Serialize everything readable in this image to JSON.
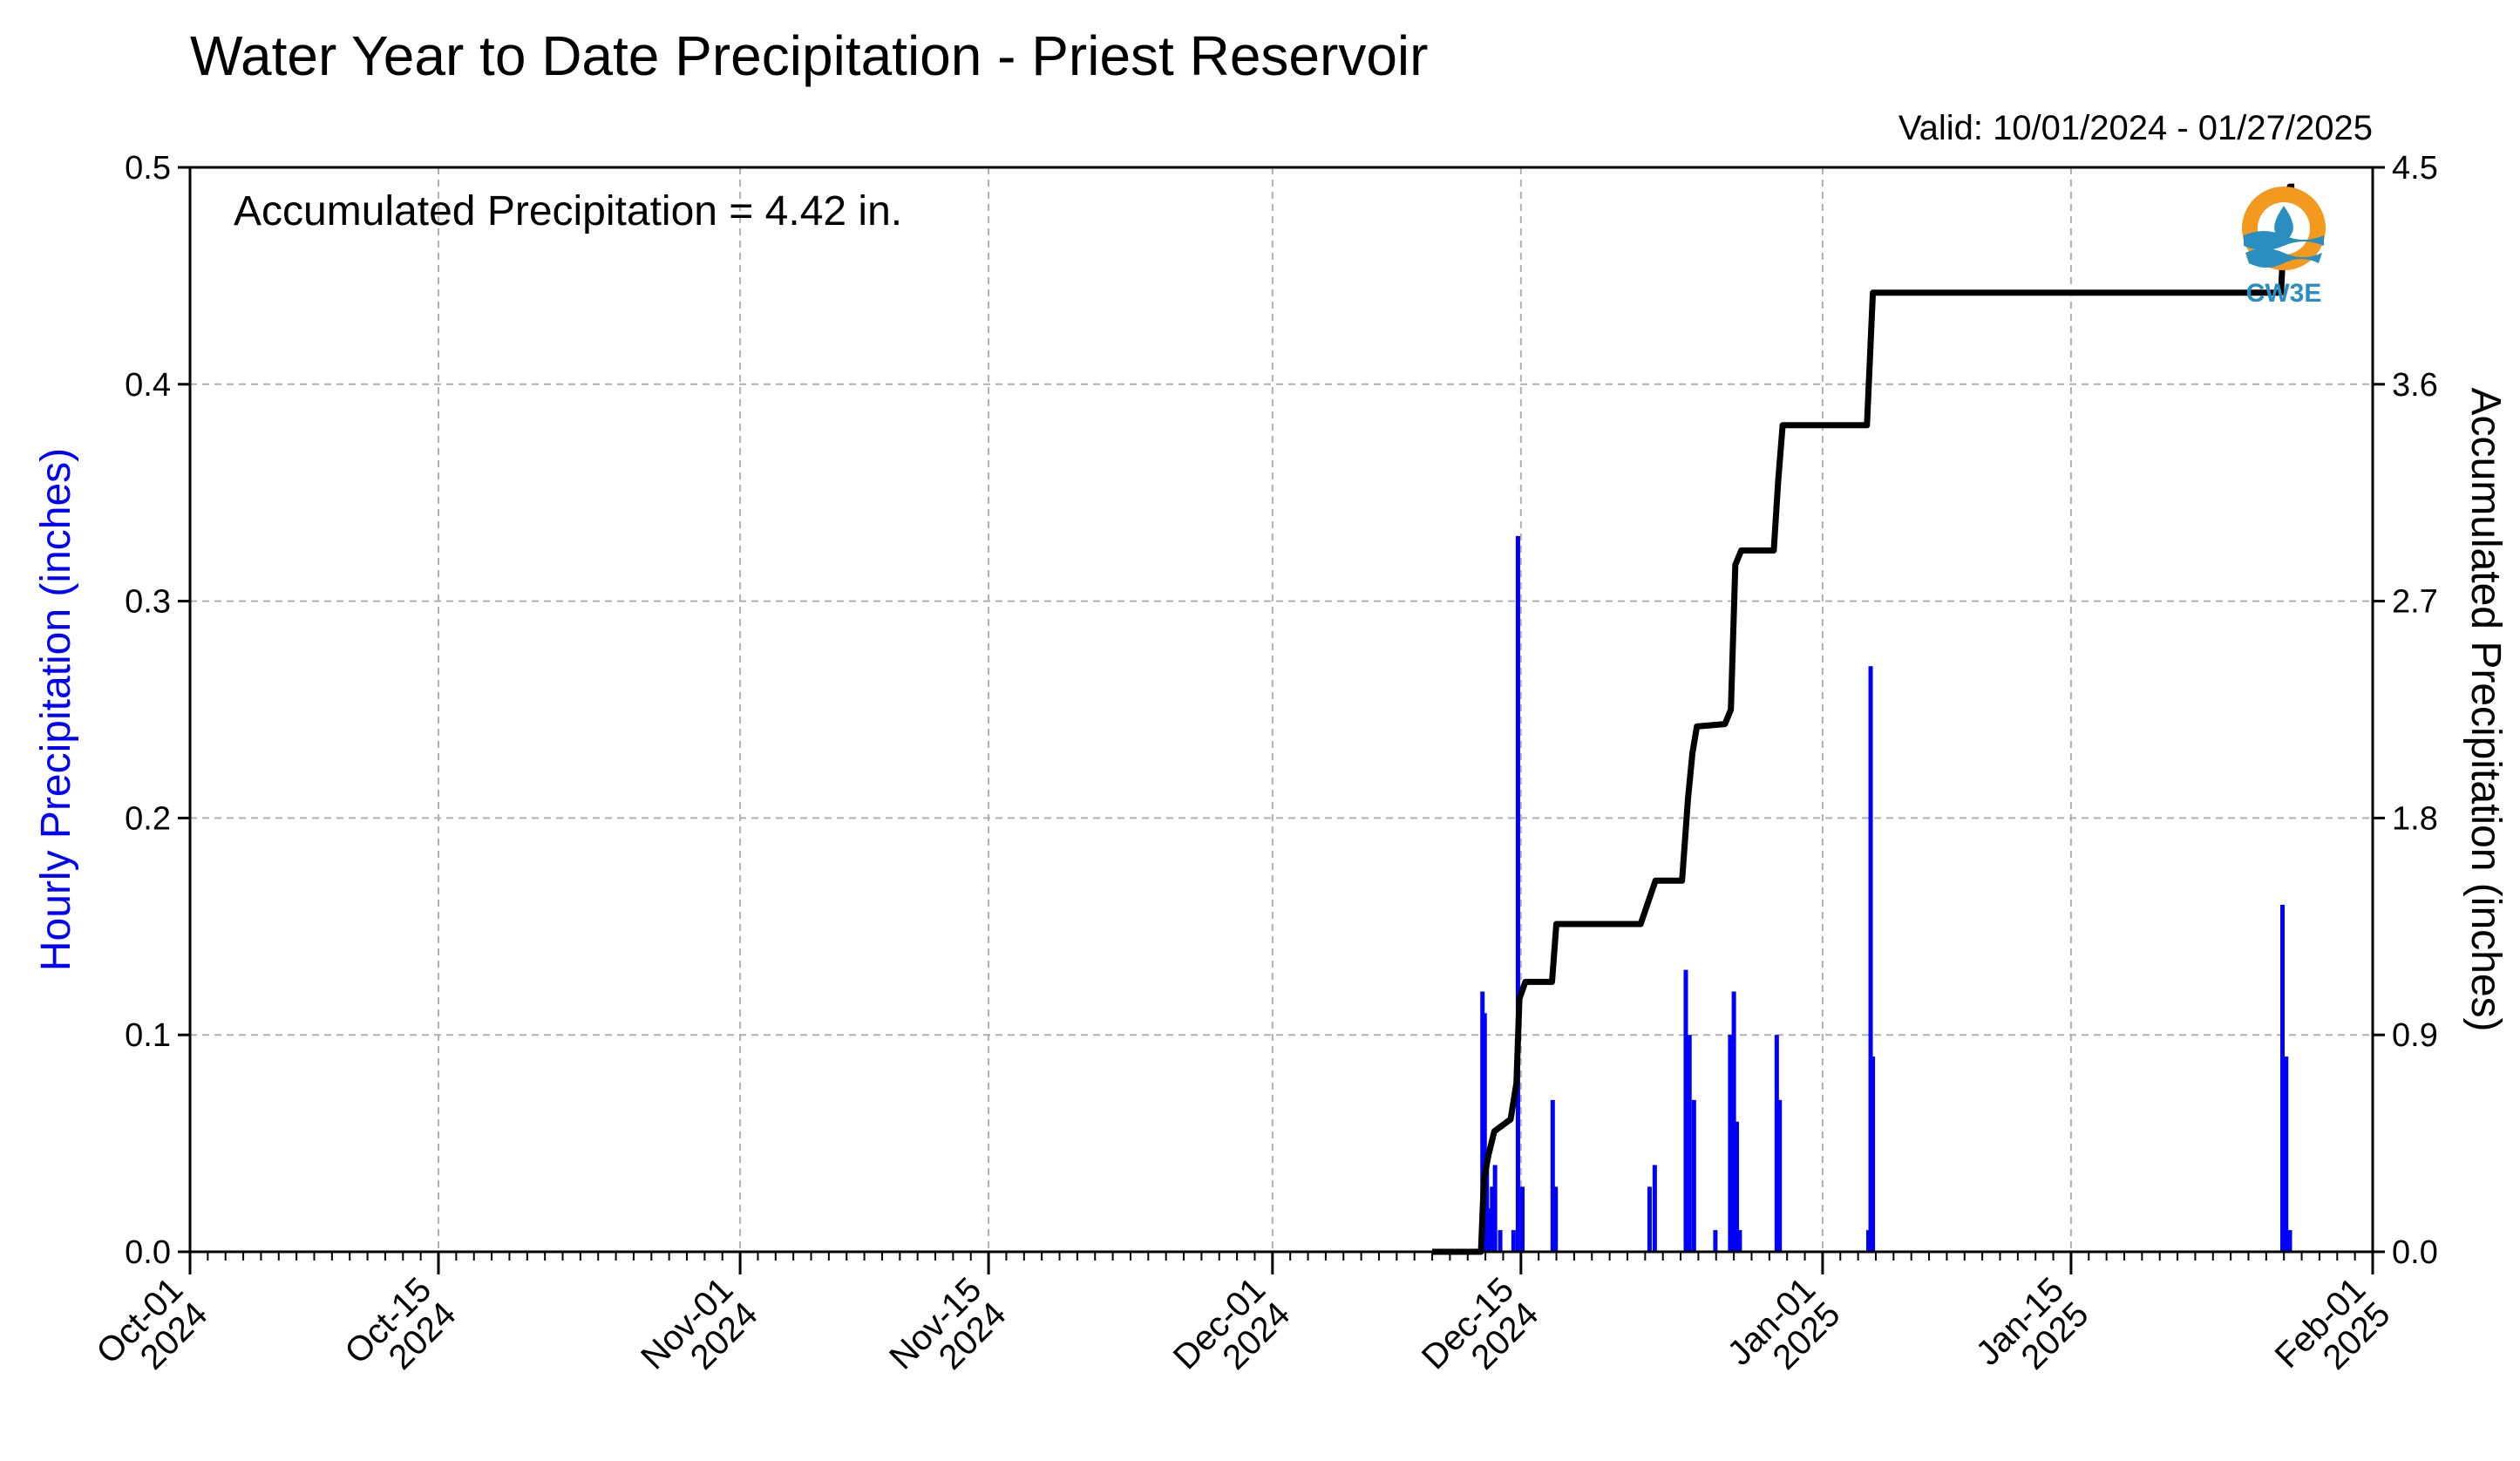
{
  "chart_data": {
    "type": "bar",
    "title": "Water Year to Date Precipitation - Priest Reservoir",
    "subtitle": "Valid: 10/01/2024 - 01/27/2025",
    "annotation": "Accumulated Precipitation = 4.42 in.",
    "logo_text": "CW3E",
    "xlabel": "",
    "ylabel": "Hourly Precipitation (inches)",
    "y2label": "Accumulated Precipitation (inches)",
    "x_start": "2024-10-01",
    "x_end": "2025-02-01",
    "ylim": [
      0,
      0.5
    ],
    "y2lim": [
      0,
      4.5
    ],
    "yticks": [
      "0.0",
      "0.1",
      "0.2",
      "0.3",
      "0.4",
      "0.5"
    ],
    "y2ticks": [
      "0.0",
      "0.9",
      "1.8",
      "2.7",
      "3.6",
      "4.5"
    ],
    "xticks": [
      {
        "date": "2024-10-01",
        "line1": "Oct-01",
        "line2": "2024"
      },
      {
        "date": "2024-10-15",
        "line1": "Oct-15",
        "line2": "2024"
      },
      {
        "date": "2024-11-01",
        "line1": "Nov-01",
        "line2": "2024"
      },
      {
        "date": "2024-11-15",
        "line1": "Nov-15",
        "line2": "2024"
      },
      {
        "date": "2024-12-01",
        "line1": "Dec-01",
        "line2": "2024"
      },
      {
        "date": "2024-12-15",
        "line1": "Dec-15",
        "line2": "2024"
      },
      {
        "date": "2025-01-01",
        "line1": "Jan-01",
        "line2": "2025"
      },
      {
        "date": "2025-01-15",
        "line1": "Jan-15",
        "line2": "2025"
      },
      {
        "date": "2025-02-01",
        "line1": "Feb-01",
        "line2": "2025"
      }
    ],
    "series": [
      {
        "name": "Hourly Precipitation",
        "color": "#0000ff",
        "type": "bar",
        "points": [
          {
            "x": "2024-12-12 20:00",
            "y": 0.12
          },
          {
            "x": "2024-12-12 23:00",
            "y": 0.11
          },
          {
            "x": "2024-12-13 02:00",
            "y": 0.04
          },
          {
            "x": "2024-12-13 05:00",
            "y": 0.02
          },
          {
            "x": "2024-12-13 09:00",
            "y": 0.03
          },
          {
            "x": "2024-12-13 13:00",
            "y": 0.04
          },
          {
            "x": "2024-12-13 20:00",
            "y": 0.01
          },
          {
            "x": "2024-12-14 14:00",
            "y": 0.01
          },
          {
            "x": "2024-12-14 20:00",
            "y": 0.33
          },
          {
            "x": "2024-12-15 02:00",
            "y": 0.03
          },
          {
            "x": "2024-12-16 19:00",
            "y": 0.07
          },
          {
            "x": "2024-12-16 23:00",
            "y": 0.03
          },
          {
            "x": "2024-12-22 06:00",
            "y": 0.03
          },
          {
            "x": "2024-12-22 13:00",
            "y": 0.04
          },
          {
            "x": "2024-12-24 07:00",
            "y": 0.13
          },
          {
            "x": "2024-12-24 12:00",
            "y": 0.1
          },
          {
            "x": "2024-12-24 18:00",
            "y": 0.07
          },
          {
            "x": "2024-12-25 23:00",
            "y": 0.01
          },
          {
            "x": "2024-12-26 19:00",
            "y": 0.1
          },
          {
            "x": "2024-12-27 00:00",
            "y": 0.12
          },
          {
            "x": "2024-12-27 04:00",
            "y": 0.06
          },
          {
            "x": "2024-12-27 08:00",
            "y": 0.01
          },
          {
            "x": "2024-12-29 10:00",
            "y": 0.1
          },
          {
            "x": "2024-12-29 14:00",
            "y": 0.07
          },
          {
            "x": "2025-01-03 14:00",
            "y": 0.01
          },
          {
            "x": "2025-01-03 17:00",
            "y": 0.27
          },
          {
            "x": "2025-01-03 20:00",
            "y": 0.09
          },
          {
            "x": "2025-01-26 22:00",
            "y": 0.16
          },
          {
            "x": "2025-01-27 03:00",
            "y": 0.09
          },
          {
            "x": "2025-01-27 08:00",
            "y": 0.01
          }
        ]
      },
      {
        "name": "Accumulated Precipitation",
        "color": "#000000",
        "type": "step",
        "points": [
          {
            "x": "2024-12-10 00:00",
            "y": 0.0
          },
          {
            "x": "2024-12-12 18:00",
            "y": 0.0
          },
          {
            "x": "2024-12-12 22:00",
            "y": 0.3
          },
          {
            "x": "2024-12-13 04:00",
            "y": 0.4
          },
          {
            "x": "2024-12-13 12:00",
            "y": 0.5
          },
          {
            "x": "2024-12-14 10:00",
            "y": 0.55
          },
          {
            "x": "2024-12-14 18:00",
            "y": 0.7
          },
          {
            "x": "2024-12-14 22:00",
            "y": 1.05
          },
          {
            "x": "2024-12-15 06:00",
            "y": 1.12
          },
          {
            "x": "2024-12-16 18:00",
            "y": 1.12
          },
          {
            "x": "2024-12-17 00:00",
            "y": 1.36
          },
          {
            "x": "2024-12-21 18:00",
            "y": 1.36
          },
          {
            "x": "2024-12-22 14:00",
            "y": 1.54
          },
          {
            "x": "2024-12-24 02:00",
            "y": 1.54
          },
          {
            "x": "2024-12-24 10:00",
            "y": 1.88
          },
          {
            "x": "2024-12-24 16:00",
            "y": 2.07
          },
          {
            "x": "2024-12-24 22:00",
            "y": 2.18
          },
          {
            "x": "2024-12-26 12:00",
            "y": 2.19
          },
          {
            "x": "2024-12-26 20:00",
            "y": 2.25
          },
          {
            "x": "2024-12-27 02:00",
            "y": 2.85
          },
          {
            "x": "2024-12-27 10:00",
            "y": 2.91
          },
          {
            "x": "2024-12-29 06:00",
            "y": 2.91
          },
          {
            "x": "2024-12-29 12:00",
            "y": 3.2
          },
          {
            "x": "2024-12-29 18:00",
            "y": 3.43
          },
          {
            "x": "2025-01-03 12:00",
            "y": 3.43
          },
          {
            "x": "2025-01-03 20:00",
            "y": 3.98
          },
          {
            "x": "2025-01-26 20:00",
            "y": 3.98
          },
          {
            "x": "2025-01-27 02:00",
            "y": 4.35
          },
          {
            "x": "2025-01-27 08:00",
            "y": 4.42
          },
          {
            "x": "2025-01-27 14:00",
            "y": 4.42
          }
        ]
      }
    ],
    "grid": true,
    "legend": "none"
  }
}
